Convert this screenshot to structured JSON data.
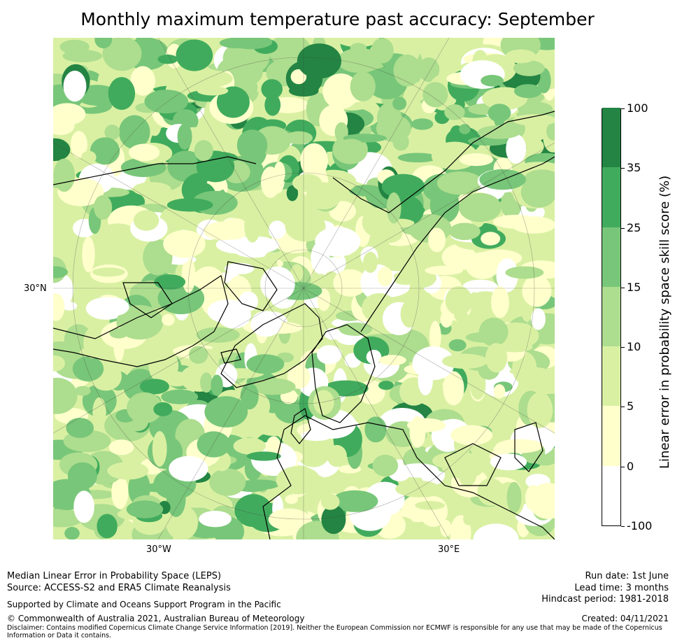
{
  "title": "Monthly maximum temperature past accuracy: September",
  "map": {
    "projection": "north-polar-stereographic",
    "lat_labels": [
      "30°N"
    ],
    "lon_labels": [
      "30°W",
      "30°E"
    ]
  },
  "colorbar": {
    "title": "Linear error in probability space skill score (%)",
    "ticks": [
      "100",
      "35",
      "25",
      "15",
      "10",
      "5",
      "0",
      "-100"
    ],
    "bins": [
      {
        "from": -100,
        "to": 0,
        "color": "#ffffff"
      },
      {
        "from": 0,
        "to": 5,
        "color": "#ffffcc"
      },
      {
        "from": 5,
        "to": 10,
        "color": "#d9f0a3"
      },
      {
        "from": 10,
        "to": 15,
        "color": "#addd8e"
      },
      {
        "from": 15,
        "to": 25,
        "color": "#78c679"
      },
      {
        "from": 25,
        "to": 35,
        "color": "#41ab5d"
      },
      {
        "from": 35,
        "to": 100,
        "color": "#238443"
      }
    ]
  },
  "footer": {
    "left_line1": "Median Linear Error in Probability Space (LEPS)",
    "left_line2": "Source: ACCESS-S2 and ERA5 Climate Reanalysis",
    "support": "Supported by Climate and Oceans Support Program in the Pacific",
    "copyright": "© Commonwealth of Australia 2021, Australian Bureau of Meteorology",
    "disclaimer_line1": "Disclaimer: Contains modified Copernicus Climate Change Service Information [2019]. Neither the European Commission nor ECMWF is responsible for any use that may be made of the Copernicus",
    "disclaimer_line2": "Information or Data it contains.",
    "run_date": "Run date: 1st June",
    "lead_time": "Lead time: 3 months",
    "hindcast": "Hindcast period: 1981-2018",
    "created": "Created: 04/11/2021"
  }
}
